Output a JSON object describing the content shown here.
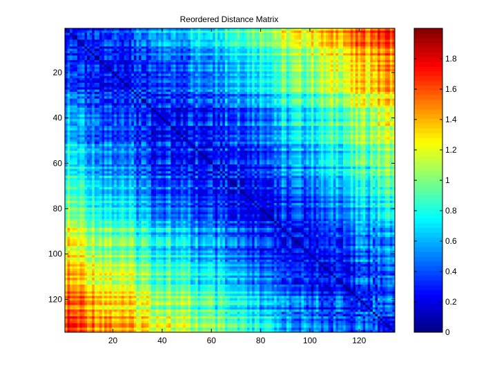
{
  "chart_data": {
    "type": "heatmap",
    "title": "Reordered Distance Matrix",
    "xlabel": "",
    "ylabel": "",
    "n": 134,
    "xlim": [
      0.5,
      134.5
    ],
    "ylim": [
      0.5,
      134.5
    ],
    "y_reversed": true,
    "x_ticks": [
      20,
      40,
      60,
      80,
      100,
      120
    ],
    "y_ticks": [
      20,
      40,
      60,
      80,
      100,
      120
    ],
    "colormap": "jet",
    "color_range": [
      0,
      2
    ],
    "colorbar_ticks": [
      0,
      0.2,
      0.4,
      0.6,
      0.8,
      1,
      1.2,
      1.4,
      1.6,
      1.8
    ],
    "colorbar_tick_labels": [
      "0",
      "0.2",
      "0.4",
      "0.6",
      "0.8",
      "1",
      "1.2",
      "1.4",
      "1.6",
      "1.8"
    ],
    "approx_values": {
      "diagonal": 0,
      "center_block_rows_50_80": 0.2,
      "mid_ring": 0.5,
      "outer_edges": 1.0,
      "corner_to_corner": 1.8
    }
  }
}
